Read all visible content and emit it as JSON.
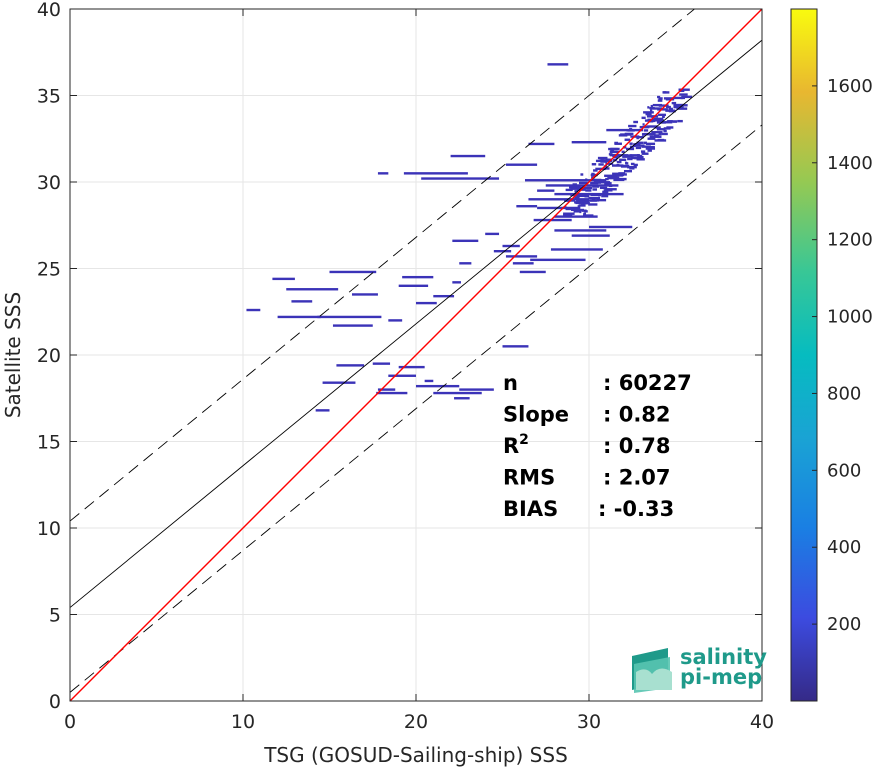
{
  "chart_data": {
    "type": "heatmap",
    "title": "",
    "xlabel": "TSG (GOSUD-Sailing-ship) SSS",
    "ylabel": "Satellite SSS",
    "xlim": [
      0,
      40
    ],
    "ylim": [
      0,
      40
    ],
    "xticks": [
      "0",
      "10",
      "20",
      "30",
      "40"
    ],
    "yticks": [
      "0",
      "5",
      "10",
      "15",
      "20",
      "25",
      "30",
      "35",
      "40"
    ],
    "grid": true,
    "colorbar": {
      "range": [
        0,
        1800
      ],
      "ticks": [
        "200",
        "400",
        "600",
        "800",
        "1000",
        "1200",
        "1400",
        "1600"
      ],
      "colormap": "parula"
    },
    "lines": {
      "identity": {
        "slope": 1.0,
        "intercept": 0,
        "color": "#ff0000"
      },
      "fit": {
        "slope": 0.82,
        "intercept": 5.4,
        "color": "#000000"
      },
      "upper_bound": {
        "slope": 0.82,
        "intercept": 10.4,
        "color": "#000000",
        "style": "dashed"
      },
      "lower_bound": {
        "slope": 0.82,
        "intercept": 0.5,
        "color": "#000000",
        "style": "dashed"
      }
    },
    "segments": [
      [
        27.6,
        28.8,
        36.8
      ],
      [
        31.0,
        33.0,
        33.0
      ],
      [
        26.5,
        28.0,
        32.2
      ],
      [
        29.0,
        31.0,
        32.3
      ],
      [
        22.0,
        24.0,
        31.5
      ],
      [
        25.2,
        27.0,
        31.0
      ],
      [
        17.8,
        18.4,
        30.5
      ],
      [
        19.3,
        23.0,
        30.5
      ],
      [
        20.3,
        24.8,
        30.2
      ],
      [
        26.3,
        31.0,
        30.1
      ],
      [
        27.5,
        31.7,
        29.8
      ],
      [
        27.0,
        28.0,
        29.5
      ],
      [
        28.0,
        32.0,
        29.3
      ],
      [
        26.5,
        30.0,
        29.0
      ],
      [
        25.8,
        27.0,
        28.6
      ],
      [
        27.0,
        29.5,
        28.5
      ],
      [
        28.0,
        30.5,
        28.0
      ],
      [
        26.8,
        29.0,
        27.8
      ],
      [
        30.0,
        32.5,
        27.4
      ],
      [
        28.0,
        31.0,
        27.2
      ],
      [
        24.0,
        24.8,
        27.0
      ],
      [
        29.0,
        31.2,
        26.9
      ],
      [
        22.1,
        23.6,
        26.6
      ],
      [
        25.0,
        26.0,
        26.3
      ],
      [
        24.5,
        25.5,
        26.0
      ],
      [
        27.8,
        30.8,
        26.1
      ],
      [
        25.2,
        27.0,
        25.7
      ],
      [
        26.6,
        29.8,
        25.5
      ],
      [
        22.5,
        23.2,
        25.3
      ],
      [
        25.6,
        26.8,
        25.3
      ],
      [
        26.0,
        27.5,
        24.8
      ],
      [
        15.0,
        17.7,
        24.8
      ],
      [
        19.2,
        21.0,
        24.5
      ],
      [
        11.7,
        13.0,
        24.4
      ],
      [
        19.0,
        20.7,
        24.0
      ],
      [
        22.1,
        22.6,
        24.2
      ],
      [
        12.5,
        15.5,
        23.8
      ],
      [
        21.0,
        22.2,
        23.4
      ],
      [
        16.3,
        17.8,
        23.5
      ],
      [
        12.8,
        14.0,
        23.1
      ],
      [
        20.0,
        21.2,
        23.0
      ],
      [
        10.2,
        11.0,
        22.6
      ],
      [
        14.3,
        18.0,
        22.2
      ],
      [
        12.0,
        14.5,
        22.2
      ],
      [
        18.4,
        19.2,
        22.0
      ],
      [
        15.2,
        17.5,
        21.7
      ],
      [
        25.0,
        26.5,
        20.5
      ],
      [
        17.5,
        18.5,
        19.5
      ],
      [
        19.0,
        20.5,
        19.3
      ],
      [
        15.4,
        17.0,
        19.4
      ],
      [
        18.4,
        20.0,
        18.8
      ],
      [
        20.5,
        21.0,
        18.5
      ],
      [
        14.6,
        16.5,
        18.4
      ],
      [
        20.0,
        22.5,
        18.2
      ],
      [
        22.5,
        24.5,
        18.0
      ],
      [
        17.7,
        19.5,
        17.8
      ],
      [
        21.0,
        23.8,
        17.8
      ],
      [
        22.2,
        23.1,
        17.5
      ],
      [
        14.2,
        15.0,
        16.8
      ],
      [
        17.8,
        18.8,
        18.0
      ]
    ],
    "dense_cluster": {
      "x_range": [
        28.5,
        35.4
      ],
      "y_range": [
        28.0,
        35.4
      ]
    },
    "stats": [
      {
        "label": "n",
        "value": ": 60227"
      },
      {
        "label": "Slope",
        "value": ": 0.82"
      },
      {
        "label": "R",
        "sup": "2",
        "value": ": 0.78"
      },
      {
        "label": "RMS",
        "value": ": 2.07"
      },
      {
        "label": "BIAS",
        "value": ": -0.33"
      }
    ]
  },
  "logo": {
    "line1": "salinity",
    "line2": "pi-mep",
    "colors": [
      "#1f9a8a",
      "#58c4b0",
      "#a8e0d0"
    ]
  }
}
